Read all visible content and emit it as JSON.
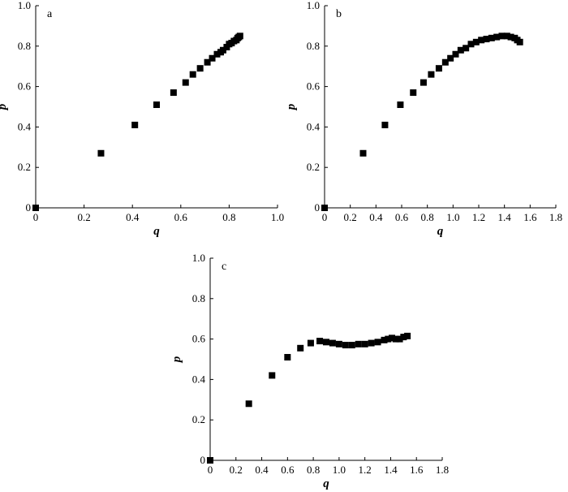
{
  "chart_data": [
    {
      "type": "scatter",
      "panel_label": "a",
      "xlabel": "q",
      "ylabel": "p",
      "xlim": [
        0,
        1.0
      ],
      "ylim": [
        0,
        1.0
      ],
      "xticks": [
        "0",
        "0.2",
        "0.4",
        "0.6",
        "0.8",
        "1.0"
      ],
      "xtick_values": [
        0,
        0.2,
        0.4,
        0.6,
        0.8,
        1.0
      ],
      "yticks": [
        "0",
        "0.2",
        "0.4",
        "0.6",
        "0.8",
        "1.0"
      ],
      "ytick_values": [
        0,
        0.2,
        0.4,
        0.6,
        0.8,
        1.0
      ],
      "points": [
        [
          0.0,
          0.0
        ],
        [
          0.27,
          0.27
        ],
        [
          0.41,
          0.41
        ],
        [
          0.5,
          0.51
        ],
        [
          0.57,
          0.57
        ],
        [
          0.62,
          0.62
        ],
        [
          0.65,
          0.66
        ],
        [
          0.68,
          0.69
        ],
        [
          0.71,
          0.72
        ],
        [
          0.73,
          0.74
        ],
        [
          0.75,
          0.76
        ],
        [
          0.765,
          0.77
        ],
        [
          0.775,
          0.78
        ],
        [
          0.79,
          0.795
        ],
        [
          0.8,
          0.81
        ],
        [
          0.81,
          0.815
        ],
        [
          0.82,
          0.825
        ],
        [
          0.83,
          0.83
        ],
        [
          0.835,
          0.84
        ],
        [
          0.84,
          0.845
        ],
        [
          0.845,
          0.85
        ]
      ]
    },
    {
      "type": "scatter",
      "panel_label": "b",
      "xlabel": "q",
      "ylabel": "p",
      "xlim": [
        0,
        1.8
      ],
      "ylim": [
        0,
        1.0
      ],
      "xticks": [
        "0",
        "0.2",
        "0.4",
        "0.6",
        "0.8",
        "1.0",
        "1.2",
        "1.4",
        "1.6",
        "1.8"
      ],
      "xtick_values": [
        0,
        0.2,
        0.4,
        0.6,
        0.8,
        1.0,
        1.2,
        1.4,
        1.6,
        1.8
      ],
      "yticks": [
        "0",
        "0.2",
        "0.4",
        "0.6",
        "0.8",
        "1.0"
      ],
      "ytick_values": [
        0,
        0.2,
        0.4,
        0.6,
        0.8,
        1.0
      ],
      "points": [
        [
          0.0,
          0.0
        ],
        [
          0.3,
          0.27
        ],
        [
          0.47,
          0.41
        ],
        [
          0.59,
          0.51
        ],
        [
          0.69,
          0.57
        ],
        [
          0.77,
          0.62
        ],
        [
          0.83,
          0.66
        ],
        [
          0.89,
          0.69
        ],
        [
          0.94,
          0.72
        ],
        [
          0.98,
          0.74
        ],
        [
          1.02,
          0.76
        ],
        [
          1.06,
          0.78
        ],
        [
          1.1,
          0.79
        ],
        [
          1.14,
          0.81
        ],
        [
          1.18,
          0.82
        ],
        [
          1.22,
          0.83
        ],
        [
          1.26,
          0.835
        ],
        [
          1.3,
          0.84
        ],
        [
          1.34,
          0.845
        ],
        [
          1.38,
          0.85
        ],
        [
          1.42,
          0.85
        ],
        [
          1.45,
          0.845
        ],
        [
          1.48,
          0.84
        ],
        [
          1.5,
          0.83
        ],
        [
          1.52,
          0.82
        ]
      ]
    },
    {
      "type": "scatter",
      "panel_label": "c",
      "xlabel": "q",
      "ylabel": "p",
      "xlim": [
        0,
        1.8
      ],
      "ylim": [
        0,
        1.0
      ],
      "xticks": [
        "0",
        "0.2",
        "0.4",
        "0.6",
        "0.8",
        "1.0",
        "1.2",
        "1.4",
        "1.6",
        "1.8"
      ],
      "xtick_values": [
        0,
        0.2,
        0.4,
        0.6,
        0.8,
        1.0,
        1.2,
        1.4,
        1.6,
        1.8
      ],
      "yticks": [
        "0",
        "0.2",
        "0.4",
        "0.6",
        "0.8",
        "1.0"
      ],
      "ytick_values": [
        0,
        0.2,
        0.4,
        0.6,
        0.8,
        1.0
      ],
      "points": [
        [
          0.0,
          0.0
        ],
        [
          0.3,
          0.28
        ],
        [
          0.48,
          0.42
        ],
        [
          0.6,
          0.51
        ],
        [
          0.7,
          0.555
        ],
        [
          0.78,
          0.58
        ],
        [
          0.85,
          0.59
        ],
        [
          0.9,
          0.585
        ],
        [
          0.95,
          0.58
        ],
        [
          1.0,
          0.575
        ],
        [
          1.05,
          0.57
        ],
        [
          1.1,
          0.57
        ],
        [
          1.15,
          0.575
        ],
        [
          1.2,
          0.575
        ],
        [
          1.25,
          0.58
        ],
        [
          1.3,
          0.585
        ],
        [
          1.35,
          0.595
        ],
        [
          1.38,
          0.6
        ],
        [
          1.41,
          0.605
        ],
        [
          1.44,
          0.6
        ],
        [
          1.47,
          0.6
        ],
        [
          1.5,
          0.61
        ],
        [
          1.53,
          0.615
        ]
      ]
    }
  ]
}
